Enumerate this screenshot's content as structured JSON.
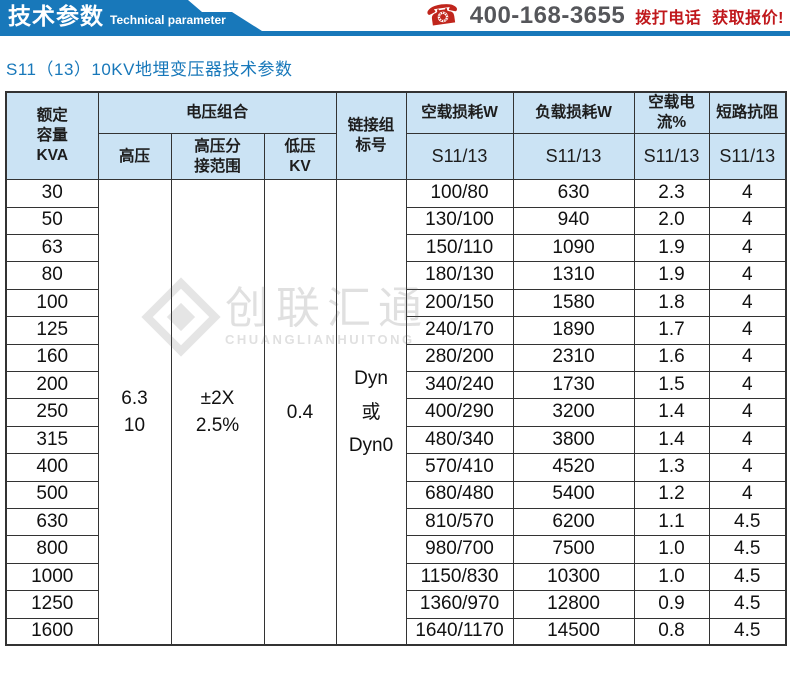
{
  "banner": {
    "title_cn": "技术参数",
    "title_en": "Technical parameter",
    "phone_number": "400-168-3655",
    "phone_cta": "拨打电话 获取报价!"
  },
  "page_title": "S11（13）10KV地埋变压器技术参数",
  "watermark": {
    "name_cn": "创联汇通",
    "name_en": "CHUANGLIANHUITONG"
  },
  "colors": {
    "accent_blue": "#1878ba",
    "accent_red": "#c0251c",
    "phone_gray": "#55565a",
    "table_header_bg": "#cbe3f4",
    "table_border": "#333333"
  },
  "table": {
    "headers": {
      "capacity": [
        "额定",
        "容量",
        "KVA"
      ],
      "voltage_group": "电压组合",
      "hv": "高压",
      "hv_tap": [
        "高压分",
        "接范围"
      ],
      "lv": [
        "低压",
        "KV"
      ],
      "link_group": [
        "链接组",
        "标号"
      ],
      "no_load_loss": "空载损耗W",
      "load_loss": "负载损耗W",
      "no_load_current": "空载电流%",
      "impedance": "短路抗阻",
      "model_sub": "S11/13"
    },
    "merged": {
      "hv": [
        "6.3",
        "10"
      ],
      "hv_tap": [
        "±2X",
        "2.5%"
      ],
      "lv": "0.4",
      "link_group": [
        "Dyn",
        "或",
        "Dyn0"
      ]
    },
    "rows": [
      {
        "kva": "30",
        "no_load_loss": "100/80",
        "load_loss": "630",
        "no_load_current": "2.3",
        "impedance": "4"
      },
      {
        "kva": "50",
        "no_load_loss": "130/100",
        "load_loss": "940",
        "no_load_current": "2.0",
        "impedance": "4"
      },
      {
        "kva": "63",
        "no_load_loss": "150/110",
        "load_loss": "1090",
        "no_load_current": "1.9",
        "impedance": "4"
      },
      {
        "kva": "80",
        "no_load_loss": "180/130",
        "load_loss": "1310",
        "no_load_current": "1.9",
        "impedance": "4"
      },
      {
        "kva": "100",
        "no_load_loss": "200/150",
        "load_loss": "1580",
        "no_load_current": "1.8",
        "impedance": "4"
      },
      {
        "kva": "125",
        "no_load_loss": "240/170",
        "load_loss": "1890",
        "no_load_current": "1.7",
        "impedance": "4"
      },
      {
        "kva": "160",
        "no_load_loss": "280/200",
        "load_loss": "2310",
        "no_load_current": "1.6",
        "impedance": "4"
      },
      {
        "kva": "200",
        "no_load_loss": "340/240",
        "load_loss": "1730",
        "no_load_current": "1.5",
        "impedance": "4"
      },
      {
        "kva": "250",
        "no_load_loss": "400/290",
        "load_loss": "3200",
        "no_load_current": "1.4",
        "impedance": "4"
      },
      {
        "kva": "315",
        "no_load_loss": "480/340",
        "load_loss": "3800",
        "no_load_current": "1.4",
        "impedance": "4"
      },
      {
        "kva": "400",
        "no_load_loss": "570/410",
        "load_loss": "4520",
        "no_load_current": "1.3",
        "impedance": "4"
      },
      {
        "kva": "500",
        "no_load_loss": "680/480",
        "load_loss": "5400",
        "no_load_current": "1.2",
        "impedance": "4"
      },
      {
        "kva": "630",
        "no_load_loss": "810/570",
        "load_loss": "6200",
        "no_load_current": "1.1",
        "impedance": "4.5"
      },
      {
        "kva": "800",
        "no_load_loss": "980/700",
        "load_loss": "7500",
        "no_load_current": "1.0",
        "impedance": "4.5"
      },
      {
        "kva": "1000",
        "no_load_loss": "1150/830",
        "load_loss": "10300",
        "no_load_current": "1.0",
        "impedance": "4.5"
      },
      {
        "kva": "1250",
        "no_load_loss": "1360/970",
        "load_loss": "12800",
        "no_load_current": "0.9",
        "impedance": "4.5"
      },
      {
        "kva": "1600",
        "no_load_loss": "1640/1170",
        "load_loss": "14500",
        "no_load_current": "0.8",
        "impedance": "4.5"
      }
    ]
  }
}
